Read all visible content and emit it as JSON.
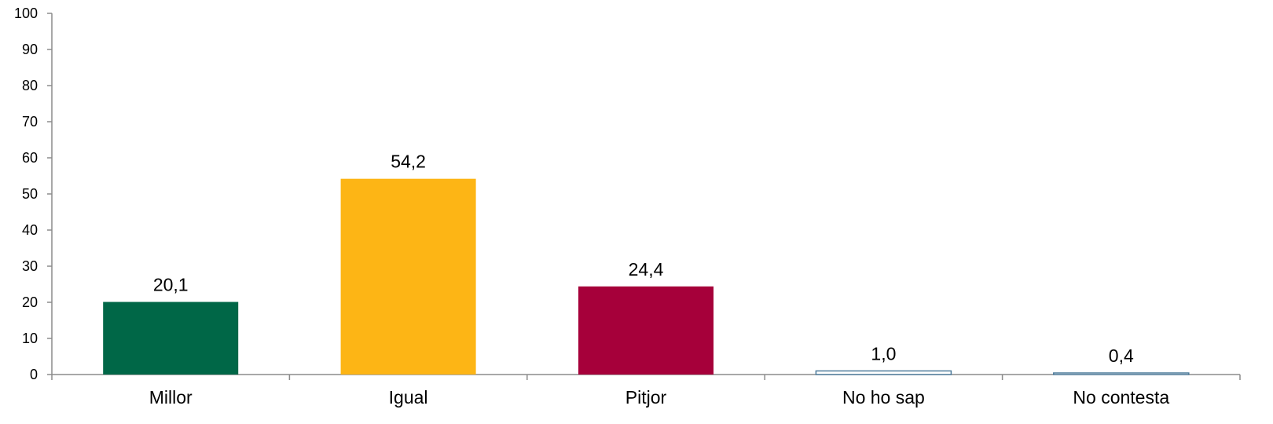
{
  "chart_data": {
    "type": "bar",
    "categories": [
      "Millor",
      "Igual",
      "Pitjor",
      "No ho sap",
      "No contesta"
    ],
    "values": [
      20.1,
      54.2,
      24.4,
      1.0,
      0.4
    ],
    "value_labels": [
      "20,1",
      "54,2",
      "24,4",
      "1,0",
      "0,4"
    ],
    "colors": [
      "#006747",
      "#FDB515",
      "#A6003A",
      "#FFFFFF",
      "#FFFFFF"
    ],
    "outline_colors": [
      "#006747",
      "#FDB515",
      "#A6003A",
      "#4F7C9C",
      "#4F7C9C"
    ],
    "ylim": [
      0,
      100
    ],
    "yticks": [
      0,
      10,
      20,
      30,
      40,
      50,
      60,
      70,
      80,
      90,
      100
    ],
    "title": "",
    "xlabel": "",
    "ylabel": "",
    "grid": false,
    "legend": false
  }
}
